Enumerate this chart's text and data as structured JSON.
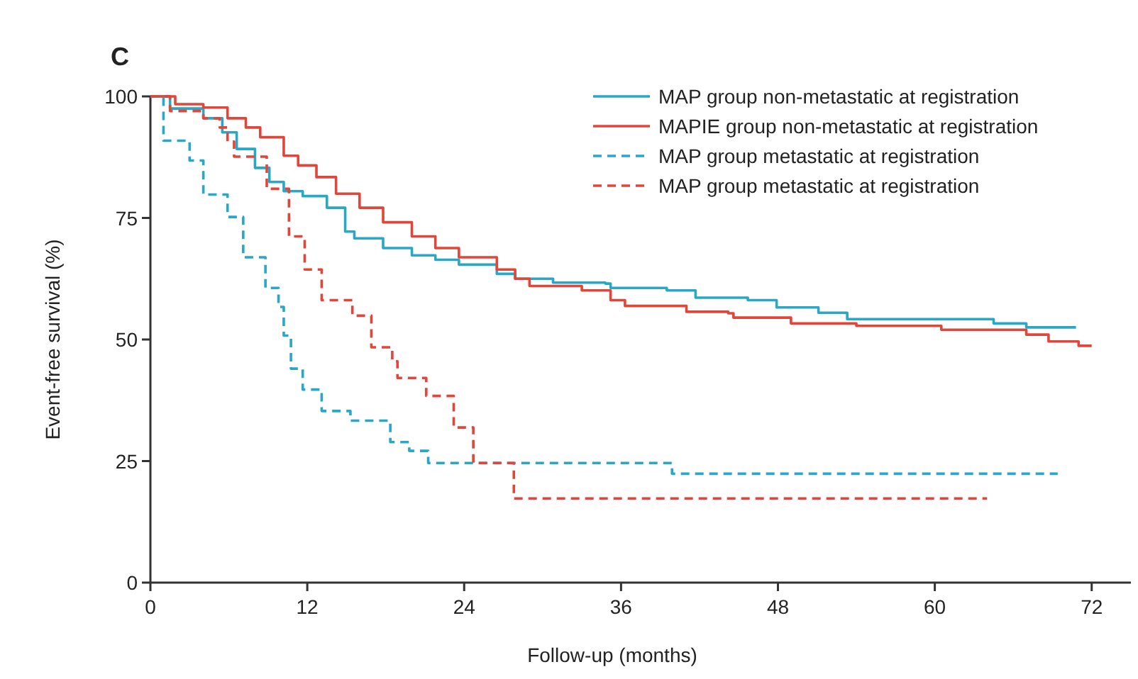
{
  "chart_data": {
    "type": "step",
    "annotations": [
      "C"
    ],
    "xlabel": "Follow-up (months)",
    "ylabel": "Event-free survival (%)",
    "xlim": [
      0,
      75
    ],
    "ylim": [
      0,
      100
    ],
    "xticks": [
      0,
      12,
      24,
      36,
      48,
      60,
      72
    ],
    "yticks": [
      0,
      25,
      50,
      75,
      100
    ],
    "grid": false,
    "legend": "top right",
    "series": [
      {
        "name": "MAP group non-metastatic at registration",
        "color": "#2aa7c4",
        "line_style": "solid",
        "x": [
          0,
          1.5,
          4.05,
          5.5,
          6.6,
          8,
          9.1,
          10.2,
          11.65,
          13.5,
          14.9,
          15.6,
          17.8,
          20,
          21.8,
          23.6,
          26.5,
          27.9,
          30.8,
          34.8,
          35.2,
          39.5,
          41.7,
          45.7,
          47.9,
          51.1,
          53.3,
          64.5,
          67,
          70.8
        ],
        "values": [
          100,
          97.5,
          95.5,
          92.6,
          89.2,
          85.3,
          82.4,
          80.5,
          79.5,
          77.1,
          72.2,
          70.8,
          68.8,
          67.3,
          66.4,
          65.4,
          63.5,
          62.5,
          61.7,
          61.5,
          60.6,
          60.1,
          58.6,
          58.1,
          56.6,
          55.5,
          54.2,
          53.3,
          52.5,
          52.5
        ]
      },
      {
        "name": "MAPIE group non-metastatic at registration",
        "color": "#e0463a",
        "line_style": "solid",
        "x": [
          0,
          1.9,
          4.05,
          5.9,
          7.3,
          8.4,
          10.2,
          11.3,
          12.7,
          14.2,
          16,
          17.8,
          20,
          21.8,
          23.6,
          26.5,
          27.9,
          29,
          33,
          35.2,
          36.3,
          41,
          44.2,
          44.6,
          49,
          54,
          60.5,
          67,
          68.7,
          71,
          72
        ],
        "values": [
          100,
          98.4,
          97.7,
          95.5,
          93.6,
          91.6,
          87.8,
          85.8,
          83.4,
          80,
          77.1,
          74.1,
          71.2,
          68.8,
          66.9,
          64.4,
          62.5,
          61,
          60.1,
          58.1,
          56.9,
          55.7,
          55.4,
          54.5,
          53.3,
          52.8,
          52,
          51,
          49.6,
          48.7,
          48.7
        ]
      },
      {
        "name": "MAP group metastatic at registration",
        "color": "#2aa7c4",
        "line_style": "dashed",
        "x": [
          0,
          1,
          3,
          4.05,
          5.9,
          7.1,
          8.8,
          9.8,
          10.2,
          10.75,
          11.65,
          13.1,
          15.3,
          18.35,
          19.8,
          21.25,
          39.9,
          69.4
        ],
        "values": [
          100,
          90.9,
          86.8,
          79.8,
          75.2,
          66.9,
          60.6,
          56.7,
          50.8,
          44,
          39.7,
          35.3,
          33.3,
          28.9,
          27.1,
          24.6,
          22.4,
          22.4
        ]
      },
      {
        "name": "MAP group metastatic at registration",
        "color": "#e0463a",
        "line_style": "dashed",
        "x": [
          0,
          1.5,
          4.05,
          5.3,
          5.9,
          6.4,
          8.9,
          10.6,
          11.8,
          13.1,
          15.45,
          16.9,
          18.5,
          18.9,
          21.1,
          23.2,
          24.7,
          27.8,
          64
        ],
        "values": [
          100,
          97,
          95.5,
          93.6,
          90.7,
          87.6,
          81,
          71.2,
          64.4,
          58.1,
          54.9,
          48.4,
          45.5,
          42.1,
          38.4,
          31.9,
          24.6,
          17.3,
          17.3
        ]
      }
    ]
  }
}
